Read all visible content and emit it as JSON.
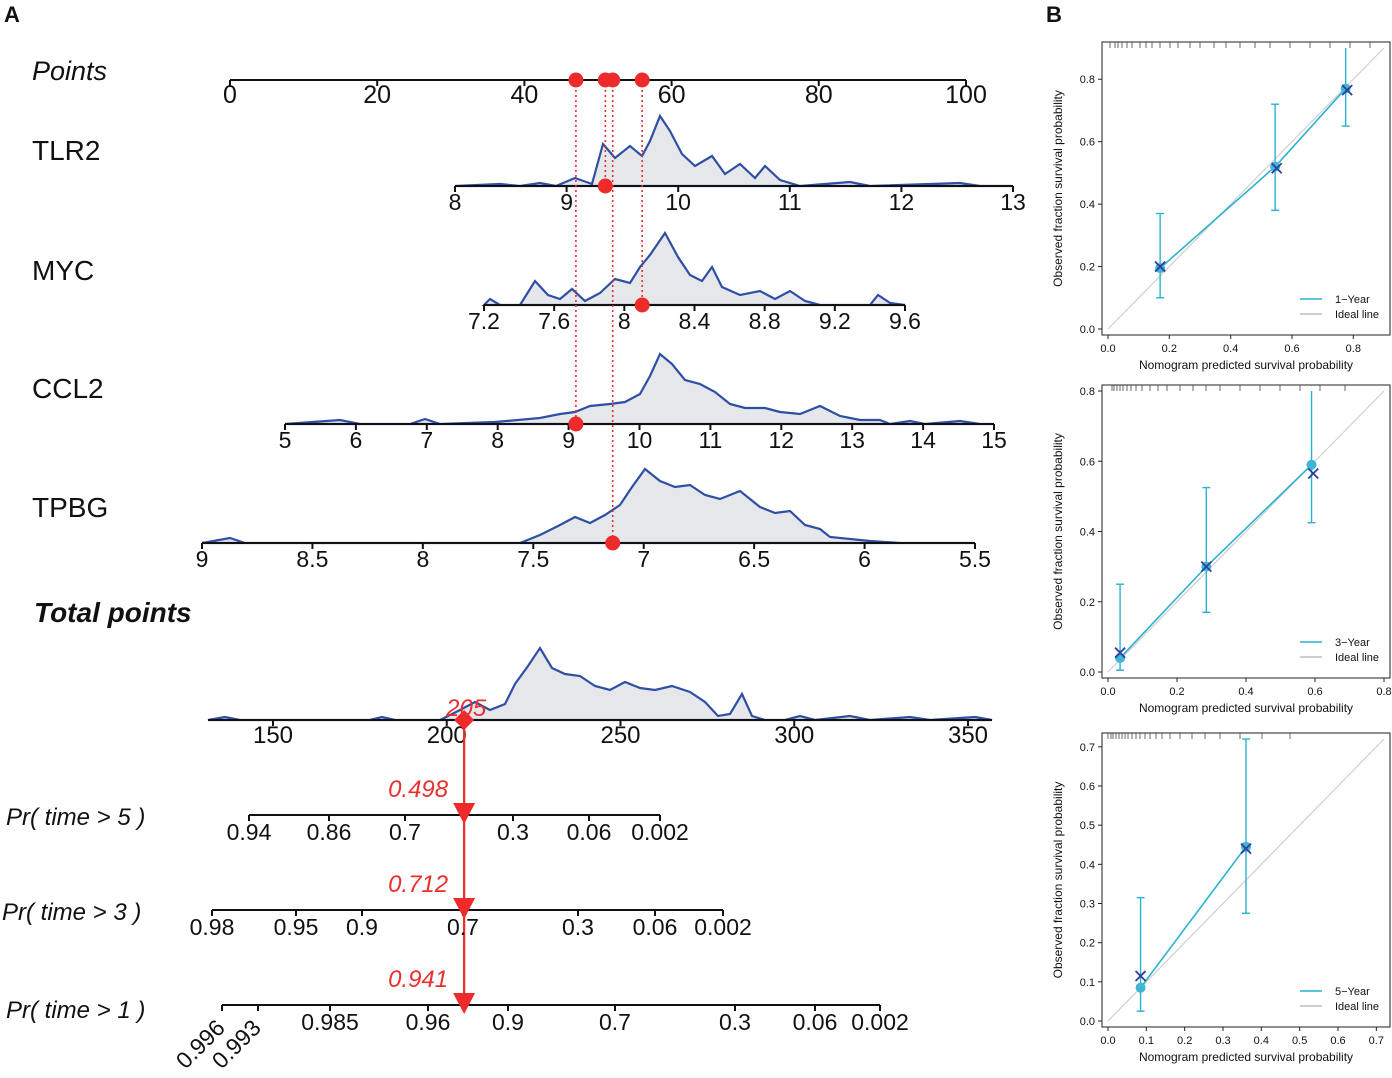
{
  "chart_data": [
    {
      "type": "nomogram",
      "panel": "A",
      "points_label": "Points",
      "points_scale": {
        "min": 0,
        "max": 100,
        "ticks": [
          0,
          20,
          40,
          60,
          80,
          100
        ]
      },
      "selected_points": [
        47,
        51,
        52,
        56
      ],
      "variables": [
        {
          "name": "TLR2",
          "ticks": [
            "8",
            "9",
            "10",
            "11",
            "12",
            "13"
          ],
          "value_points": 51
        },
        {
          "name": "MYC",
          "ticks": [
            "7.2",
            "7.6",
            "8",
            "8.4",
            "8.8",
            "9.2",
            "9.6"
          ],
          "value_points": 56
        },
        {
          "name": "CCL2",
          "ticks": [
            "5",
            "6",
            "7",
            "8",
            "9",
            "10",
            "11",
            "12",
            "13",
            "14",
            "15"
          ],
          "value_points": 47
        },
        {
          "name": "TPBG",
          "ticks": [
            "9",
            "8.5",
            "8",
            "7.5",
            "7",
            "6.5",
            "6",
            "5.5"
          ],
          "value_points": 52
        }
      ],
      "total_points": {
        "label": "Total points",
        "ticks": [
          "150",
          "200",
          "250",
          "300",
          "350"
        ],
        "value": 205,
        "value_label": "205"
      },
      "probabilities": [
        {
          "label": "Pr( time > 5 )",
          "ticks": [
            "0.94",
            "0.86",
            "0.7",
            "0.3",
            "0.06",
            "0.002"
          ],
          "value": 0.498,
          "value_label": "0.498"
        },
        {
          "label": "Pr( time > 3 )",
          "ticks": [
            "0.98",
            "0.95",
            "0.9",
            "0.7",
            "0.3",
            "0.06",
            "0.002"
          ],
          "value": 0.712,
          "value_label": "0.712"
        },
        {
          "label": "Pr( time > 1 )",
          "ticks": [
            "0.996",
            "0.993",
            "0.985",
            "0.96",
            "0.9",
            "0.7",
            "0.3",
            "0.06",
            "0.002"
          ],
          "value": 0.941,
          "value_label": "0.941"
        }
      ]
    },
    {
      "type": "calibration",
      "panel": "B",
      "xlabel": "Nomogram predicted survival probability",
      "ylabel": "Observed fraction survival probability",
      "plots": [
        {
          "series": "1−Year",
          "ideal": "Ideal line",
          "xlim": [
            0,
            0.9
          ],
          "ylim": [
            0,
            0.9
          ],
          "xticks": [
            "0.0",
            "0.2",
            "0.4",
            "0.6",
            "0.8"
          ],
          "yticks": [
            "0.0",
            "0.2",
            "0.4",
            "0.6",
            "0.8"
          ],
          "points": [
            {
              "x": 0.17,
              "y": 0.195,
              "lo": 0.1,
              "hi": 0.37,
              "kmx": 0.17,
              "kmy": 0.2
            },
            {
              "x": 0.545,
              "y": 0.52,
              "lo": 0.38,
              "hi": 0.72,
              "kmx": 0.55,
              "kmy": 0.515
            },
            {
              "x": 0.775,
              "y": 0.77,
              "lo": 0.65,
              "hi": 0.93,
              "kmx": 0.78,
              "kmy": 0.765
            }
          ]
        },
        {
          "series": "3−Year",
          "ideal": "Ideal line",
          "xlim": [
            0,
            0.8
          ],
          "ylim": [
            0,
            0.8
          ],
          "xticks": [
            "0.0",
            "0.2",
            "0.4",
            "0.6",
            "0.8"
          ],
          "yticks": [
            "0.0",
            "0.2",
            "0.4",
            "0.6",
            "0.8"
          ],
          "points": [
            {
              "x": 0.035,
              "y": 0.04,
              "lo": 0.005,
              "hi": 0.25,
              "kmx": 0.035,
              "kmy": 0.055
            },
            {
              "x": 0.285,
              "y": 0.3,
              "lo": 0.17,
              "hi": 0.525,
              "kmx": 0.285,
              "kmy": 0.3
            },
            {
              "x": 0.59,
              "y": 0.59,
              "lo": 0.425,
              "hi": 0.82,
              "kmx": 0.595,
              "kmy": 0.565
            }
          ]
        },
        {
          "series": "5−Year",
          "ideal": "Ideal line",
          "xlim": [
            0,
            0.72
          ],
          "ylim": [
            0,
            0.72
          ],
          "xticks": [
            "0.0",
            "0.1",
            "0.2",
            "0.3",
            "0.4",
            "0.5",
            "0.6",
            "0.7"
          ],
          "yticks": [
            "0.0",
            "0.1",
            "0.2",
            "0.3",
            "0.4",
            "0.5",
            "0.6",
            "0.7"
          ],
          "points": [
            {
              "x": 0.085,
              "y": 0.085,
              "lo": 0.025,
              "hi": 0.315,
              "kmx": 0.085,
              "kmy": 0.115
            },
            {
              "x": 0.36,
              "y": 0.445,
              "lo": 0.275,
              "hi": 0.72,
              "kmx": 0.36,
              "kmy": 0.44
            }
          ]
        }
      ]
    }
  ],
  "panels": {
    "a": "A",
    "b": "B"
  }
}
